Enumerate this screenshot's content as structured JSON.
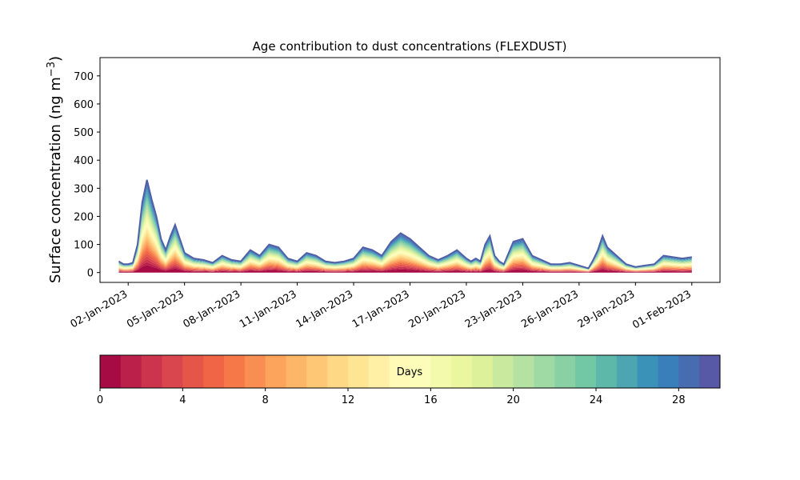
{
  "chart_data": {
    "type": "area",
    "subtype": "stacked",
    "title": "Age contribution to dust concentrations (FLEXDUST)",
    "ylabel_main": "Surface concentration (ng m",
    "ylabel_sup": "−3",
    "ylabel_close": ")",
    "xlabel": "",
    "ylim": [
      -35,
      765
    ],
    "yticks": [
      0,
      100,
      200,
      300,
      400,
      500,
      600,
      700
    ],
    "xlim": [
      "2022-12-31T12:00",
      "2023-02-02T12:00"
    ],
    "xticks": [
      "02-Jan-2023",
      "05-Jan-2023",
      "08-Jan-2023",
      "11-Jan-2023",
      "14-Jan-2023",
      "17-Jan-2023",
      "20-Jan-2023",
      "23-Jan-2023",
      "26-Jan-2023",
      "29-Jan-2023",
      "01-Feb-2023"
    ],
    "grid": false,
    "total_series": {
      "name": "",
      "x": [
        "2023-01-01T12:00",
        "2023-01-01T18:00",
        "2023-01-02T00:00",
        "2023-01-02T06:00",
        "2023-01-02T12:00",
        "2023-01-02T18:00",
        "2023-01-03T00:00",
        "2023-01-03T06:00",
        "2023-01-03T12:00",
        "2023-01-03T18:00",
        "2023-01-04T00:00",
        "2023-01-04T06:00",
        "2023-01-04T12:00",
        "2023-01-04T18:00",
        "2023-01-05T00:00",
        "2023-01-05T12:00",
        "2023-01-06T00:00",
        "2023-01-06T12:00",
        "2023-01-07T00:00",
        "2023-01-07T12:00",
        "2023-01-08T00:00",
        "2023-01-08T12:00",
        "2023-01-09T00:00",
        "2023-01-09T12:00",
        "2023-01-10T00:00",
        "2023-01-10T12:00",
        "2023-01-11T00:00",
        "2023-01-11T12:00",
        "2023-01-12T00:00",
        "2023-01-12T12:00",
        "2023-01-13T00:00",
        "2023-01-13T12:00",
        "2023-01-14T00:00",
        "2023-01-14T12:00",
        "2023-01-15T00:00",
        "2023-01-15T12:00",
        "2023-01-16T00:00",
        "2023-01-16T12:00",
        "2023-01-17T00:00",
        "2023-01-17T12:00",
        "2023-01-18T00:00",
        "2023-01-18T12:00",
        "2023-01-19T00:00",
        "2023-01-19T12:00",
        "2023-01-20T00:00",
        "2023-01-20T06:00",
        "2023-01-20T12:00",
        "2023-01-20T18:00",
        "2023-01-21T00:00",
        "2023-01-21T06:00",
        "2023-01-21T12:00",
        "2023-01-21T18:00",
        "2023-01-22T00:00",
        "2023-01-22T12:00",
        "2023-01-23T00:00",
        "2023-01-23T12:00",
        "2023-01-24T00:00",
        "2023-01-24T12:00",
        "2023-01-25T00:00",
        "2023-01-25T12:00",
        "2023-01-26T00:00",
        "2023-01-26T06:00",
        "2023-01-26T12:00",
        "2023-01-26T18:00",
        "2023-01-27T00:00",
        "2023-01-27T06:00",
        "2023-01-27T12:00",
        "2023-01-28T00:00",
        "2023-01-28T12:00",
        "2023-01-29T00:00",
        "2023-01-29T12:00",
        "2023-01-30T00:00",
        "2023-01-30T12:00",
        "2023-01-31T00:00",
        "2023-01-31T12:00",
        "2023-02-01T00:00"
      ],
      "values": [
        40,
        30,
        30,
        35,
        100,
        250,
        330,
        260,
        200,
        120,
        80,
        130,
        170,
        120,
        70,
        50,
        45,
        35,
        60,
        45,
        40,
        80,
        60,
        100,
        90,
        50,
        40,
        70,
        60,
        40,
        35,
        40,
        50,
        90,
        80,
        60,
        110,
        140,
        120,
        90,
        60,
        45,
        60,
        80,
        50,
        40,
        50,
        40,
        100,
        130,
        60,
        40,
        30,
        110,
        120,
        60,
        45,
        30,
        30,
        35,
        25,
        20,
        15,
        45,
        80,
        130,
        90,
        60,
        30,
        20,
        25,
        30,
        60,
        55,
        50,
        55
      ]
    },
    "colorbar": {
      "label": "Days",
      "range": [
        0,
        30
      ],
      "ticks": [
        0,
        4,
        8,
        12,
        16,
        20,
        24,
        28
      ],
      "colormap": "Spectral"
    }
  }
}
